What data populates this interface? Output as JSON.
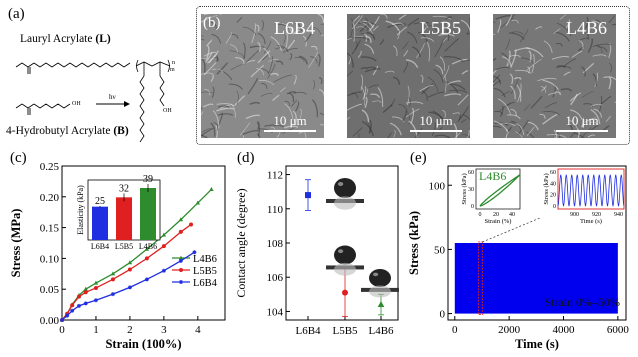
{
  "panel_labels": {
    "a": "(a)",
    "b": "(b)",
    "c": "(c)",
    "d": "(d)",
    "e": "(e)"
  },
  "panel_a": {
    "monomer_l": {
      "name": "Lauryl Acrylate ",
      "abbr": "(L)"
    },
    "monomer_b": {
      "name": "4-Hydrobutyl Acrylate ",
      "abbr": "(B)"
    },
    "reaction_label": "hν",
    "copolymer_subscripts": [
      "m",
      "n"
    ],
    "oh_label": "OH"
  },
  "panel_b": {
    "images": [
      {
        "name": "L6B4",
        "scale": "10 μm",
        "bg_color": "#8a8a8a"
      },
      {
        "name": "L5B5",
        "scale": "10 μm",
        "bg_color": "#6f6f6f"
      },
      {
        "name": "L4B6",
        "scale": "10 μm",
        "bg_color": "#777777"
      }
    ]
  },
  "chart_data": [
    {
      "id": "c",
      "type": "line",
      "xlabel": "Strain (100%)",
      "ylabel": "Stress (MPa)",
      "xlim": [
        0,
        4.8
      ],
      "ylim": [
        0,
        0.25
      ],
      "xticks": [
        0,
        1,
        2,
        3,
        4
      ],
      "xtick_labels": [
        "0",
        "1",
        "2",
        "3",
        "4"
      ],
      "yticks": [
        0,
        0.05,
        0.1,
        0.15,
        0.2,
        0.25
      ],
      "ytick_labels": [
        "0.00",
        "0.05",
        "0.10",
        "0.15",
        "0.20",
        "0.25"
      ],
      "legend_position": "middle-right",
      "series": [
        {
          "name": "L4B6",
          "color": "#2e8b2e",
          "marker": "triangle",
          "points": [
            [
              0,
              0
            ],
            [
              0.15,
              0.01
            ],
            [
              0.3,
              0.025
            ],
            [
              0.5,
              0.04
            ],
            [
              0.7,
              0.05
            ],
            [
              1.0,
              0.06
            ],
            [
              1.5,
              0.075
            ],
            [
              2.0,
              0.093
            ],
            [
              2.5,
              0.115
            ],
            [
              3.0,
              0.138
            ],
            [
              3.5,
              0.163
            ],
            [
              4.0,
              0.19
            ],
            [
              4.4,
              0.212
            ]
          ]
        },
        {
          "name": "L5B5",
          "color": "#e02020",
          "marker": "circle",
          "points": [
            [
              0,
              0
            ],
            [
              0.15,
              0.01
            ],
            [
              0.3,
              0.024
            ],
            [
              0.5,
              0.038
            ],
            [
              0.7,
              0.045
            ],
            [
              1.0,
              0.052
            ],
            [
              1.5,
              0.066
            ],
            [
              2.0,
              0.082
            ],
            [
              2.5,
              0.1
            ],
            [
              3.0,
              0.12
            ],
            [
              3.5,
              0.143
            ],
            [
              3.8,
              0.155
            ]
          ]
        },
        {
          "name": "L6B4",
          "color": "#1f2ee0",
          "marker": "star",
          "points": [
            [
              0,
              0
            ],
            [
              0.15,
              0.007
            ],
            [
              0.3,
              0.015
            ],
            [
              0.5,
              0.023
            ],
            [
              0.7,
              0.027
            ],
            [
              1.0,
              0.032
            ],
            [
              1.5,
              0.042
            ],
            [
              2.0,
              0.053
            ],
            [
              2.5,
              0.066
            ],
            [
              3.0,
              0.08
            ],
            [
              3.5,
              0.096
            ],
            [
              3.9,
              0.11
            ]
          ]
        }
      ],
      "inset": {
        "type": "bar",
        "ylabel": "Elasticity (kPa)",
        "categories": [
          "L6B4",
          "L5B5",
          "L4B6"
        ],
        "values": [
          25,
          32,
          39
        ],
        "value_labels": [
          "25",
          "32",
          "39"
        ],
        "errors": [
          0.5,
          3,
          3
        ],
        "colors": [
          "#1f2ee0",
          "#e02020",
          "#2e8b2e"
        ],
        "ylim": [
          0,
          45
        ]
      }
    },
    {
      "id": "d",
      "type": "scatter",
      "ylabel": "Contact angle (degree)",
      "categories": [
        "L6B4",
        "L5B5",
        "L4B6"
      ],
      "ylim": [
        103.5,
        112.5
      ],
      "yticks": [
        104,
        106,
        108,
        110,
        112
      ],
      "ytick_labels": [
        "104",
        "106",
        "108",
        "110",
        "112"
      ],
      "values": [
        110.8,
        105.1,
        104.4
      ],
      "errors": [
        0.9,
        1.4,
        0.6
      ],
      "colors": [
        "#1f2ee0",
        "#e02020",
        "#2e8b2e"
      ],
      "markers": [
        "square",
        "circle",
        "triangle"
      ]
    },
    {
      "id": "e",
      "type": "area",
      "xlabel": "Time (s)",
      "ylabel": "Stress (kPa)",
      "xlim": [
        -250,
        6300
      ],
      "ylim": [
        -5,
        115
      ],
      "xticks": [
        0,
        2000,
        4000,
        6000
      ],
      "xtick_labels": [
        "0",
        "2000",
        "4000",
        "6000"
      ],
      "yticks": [
        0,
        50,
        100
      ],
      "ytick_labels": [
        "0",
        "50",
        "100"
      ],
      "fill_color": "#0000ee",
      "envelope_max": 55,
      "duration": 6000,
      "annotation": "Strain 0%–50%",
      "inset_left": {
        "label": "L4B6",
        "label_color": "#2e8b2e",
        "xlabel": "Strain (%)",
        "ylabel": "Stress (kPa)",
        "xlim": [
          -5,
          50
        ],
        "ylim": [
          -5,
          65
        ],
        "xticks": [
          0,
          20,
          40
        ],
        "xtick_labels": [
          "0",
          "20",
          "40"
        ],
        "yticks": [
          0,
          30,
          60
        ],
        "ytick_labels": [
          "0",
          "30",
          "60"
        ],
        "color": "#2e8b2e"
      },
      "inset_right": {
        "xlabel": "Time (s)",
        "ylabel": "Stress (kPa)",
        "xlim": [
          885,
          945
        ],
        "ylim": [
          -5,
          65
        ],
        "xticks": [
          900,
          920,
          940
        ],
        "xtick_labels": [
          "900",
          "920",
          "940"
        ],
        "yticks": [
          0,
          20,
          40,
          60
        ],
        "ytick_labels": [
          "0",
          "20",
          "40",
          "60"
        ],
        "color": "#1f2ee0",
        "period": 5,
        "amplitude": 55
      }
    }
  ]
}
